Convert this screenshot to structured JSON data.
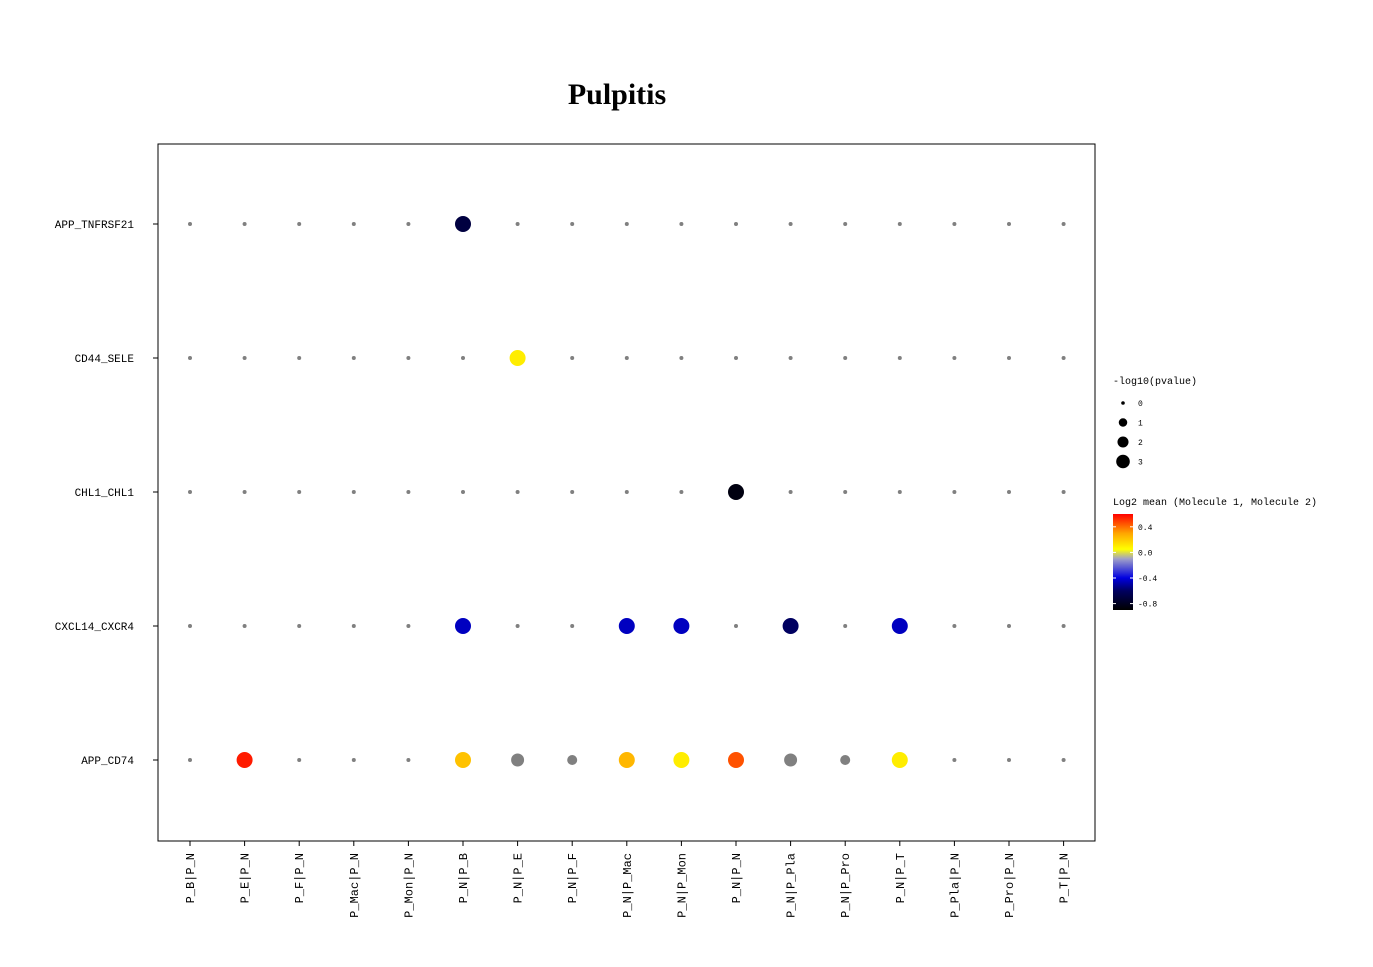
{
  "chart_data": {
    "type": "scatter",
    "title": "Pulpitis",
    "xlabel": "",
    "ylabel": "",
    "grid": false,
    "legend_position": "right",
    "categories_x": [
      "P_B|P_N",
      "P_E|P_N",
      "P_F|P_N",
      "P_Mac|P_N",
      "P_Mon|P_N",
      "P_N|P_B",
      "P_N|P_E",
      "P_N|P_F",
      "P_N|P_Mac",
      "P_N|P_Mon",
      "P_N|P_N",
      "P_N|P_Pla",
      "P_N|P_Pro",
      "P_N|P_T",
      "P_Pla|P_N",
      "P_Pro|P_N",
      "P_T|P_N"
    ],
    "categories_y": [
      "APP_TNFRSF21",
      "CD44_SELE",
      "CHL1_CHL1",
      "CXCL14_CXCR4",
      "APP_CD74"
    ],
    "na_color": "#808080",
    "points": [
      {
        "y": "APP_TNFRSF21",
        "x": "P_N|P_B",
        "neglog10p": 3,
        "log2mean": -0.7
      },
      {
        "y": "CD44_SELE",
        "x": "P_N|P_E",
        "neglog10p": 3,
        "log2mean": 0.1
      },
      {
        "y": "CHL1_CHL1",
        "x": "P_N|P_N",
        "neglog10p": 3,
        "log2mean": -0.85
      },
      {
        "y": "CXCL14_CXCR4",
        "x": "P_N|P_B",
        "neglog10p": 3,
        "log2mean": -0.45
      },
      {
        "y": "CXCL14_CXCR4",
        "x": "P_N|P_Mac",
        "neglog10p": 3,
        "log2mean": -0.45
      },
      {
        "y": "CXCL14_CXCR4",
        "x": "P_N|P_Mon",
        "neglog10p": 3,
        "log2mean": -0.45
      },
      {
        "y": "CXCL14_CXCR4",
        "x": "P_N|P_Pla",
        "neglog10p": 3,
        "log2mean": -0.6
      },
      {
        "y": "CXCL14_CXCR4",
        "x": "P_N|P_T",
        "neglog10p": 3,
        "log2mean": -0.45
      },
      {
        "y": "APP_CD74",
        "x": "P_E|P_N",
        "neglog10p": 3,
        "log2mean": 0.55
      },
      {
        "y": "APP_CD74",
        "x": "P_N|P_B",
        "neglog10p": 3,
        "log2mean": 0.22
      },
      {
        "y": "APP_CD74",
        "x": "P_N|P_E",
        "neglog10p": 2,
        "log2mean": null
      },
      {
        "y": "APP_CD74",
        "x": "P_N|P_F",
        "neglog10p": 1,
        "log2mean": null
      },
      {
        "y": "APP_CD74",
        "x": "P_N|P_Mac",
        "neglog10p": 3,
        "log2mean": 0.25
      },
      {
        "y": "APP_CD74",
        "x": "P_N|P_Mon",
        "neglog10p": 3,
        "log2mean": 0.1
      },
      {
        "y": "APP_CD74",
        "x": "P_N|P_N",
        "neglog10p": 3,
        "log2mean": 0.45
      },
      {
        "y": "APP_CD74",
        "x": "P_N|P_Pla",
        "neglog10p": 2,
        "log2mean": null
      },
      {
        "y": "APP_CD74",
        "x": "P_N|P_Pro",
        "neglog10p": 1,
        "log2mean": null
      },
      {
        "y": "APP_CD74",
        "x": "P_N|P_T",
        "neglog10p": 3,
        "log2mean": 0.1
      }
    ],
    "size_legend": {
      "title": "-log10(pvalue)",
      "levels": [
        0,
        1,
        2,
        3
      ]
    },
    "color_legend": {
      "title": "Log2 mean (Molecule 1, Molecule 2)",
      "range": [
        -0.9,
        0.6
      ],
      "ticks": [
        0.4,
        0.0,
        -0.4,
        -0.8
      ],
      "tick_labels": [
        "0.4",
        "0.0",
        "-0.4",
        "-0.8"
      ],
      "stops": [
        {
          "value": -0.9,
          "color": "#000000"
        },
        {
          "value": -0.6,
          "color": "#000060"
        },
        {
          "value": -0.4,
          "color": "#0000e0"
        },
        {
          "value": -0.1,
          "color": "#a0a0c8"
        },
        {
          "value": 0.05,
          "color": "#ffff00"
        },
        {
          "value": 0.3,
          "color": "#ffa500"
        },
        {
          "value": 0.6,
          "color": "#ff0000"
        }
      ]
    }
  }
}
